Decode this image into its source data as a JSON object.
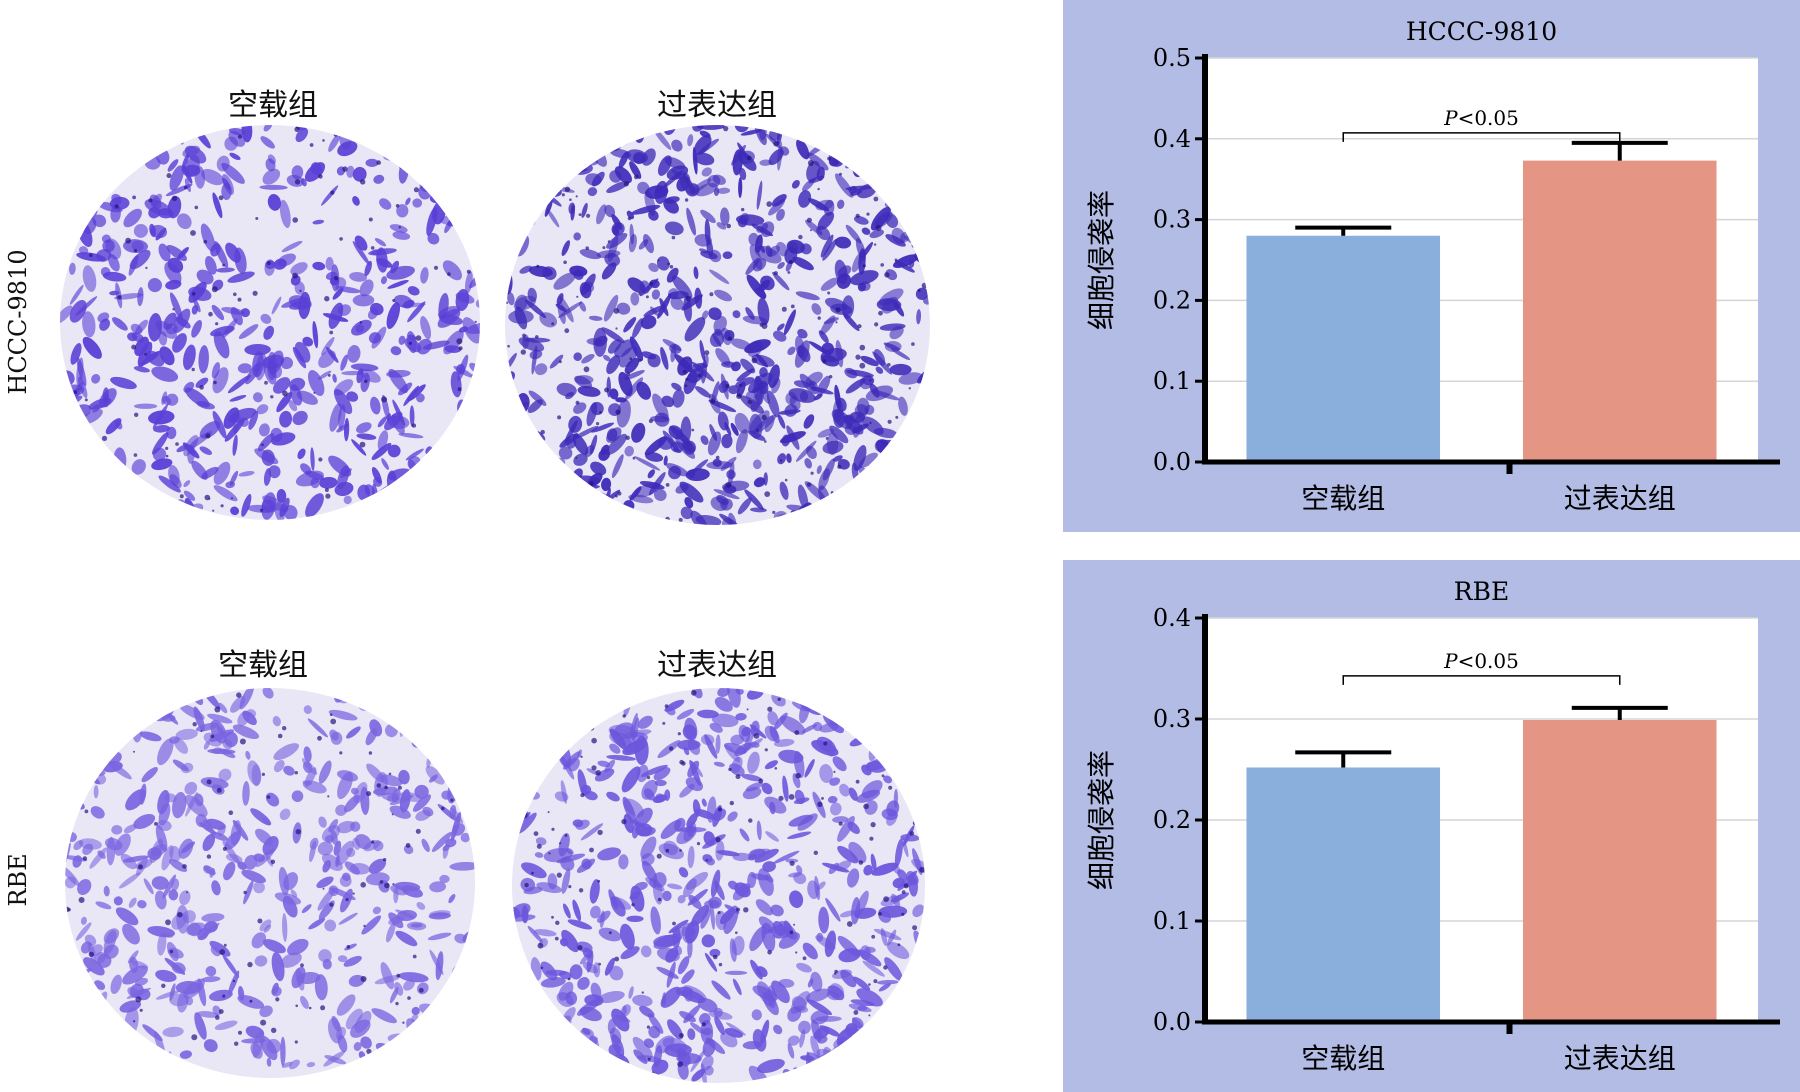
{
  "micrographs": {
    "rows": [
      {
        "label": "HCCC-9810",
        "columns": [
          "空载组",
          "过表达组"
        ],
        "stain_colors": [
          "#5a3fd6",
          "#3d2ab8"
        ]
      },
      {
        "label": "RBE",
        "columns": [
          "空载组",
          "过表达组"
        ],
        "stain_colors": [
          "#7a64e0",
          "#6c56dc"
        ]
      }
    ]
  },
  "chart_data": [
    {
      "type": "bar",
      "title": "HCCC-9810",
      "xlabel": "",
      "ylabel": "细胞侵袭率",
      "categories": [
        "空载组",
        "过表达组"
      ],
      "values": [
        0.28,
        0.373
      ],
      "errors": [
        0.01,
        0.022
      ],
      "colors": [
        "#8aafdc",
        "#e59583"
      ],
      "ylim": [
        0,
        0.5
      ],
      "yticks": [
        "0.0",
        "0.1",
        "0.2",
        "0.3",
        "0.4",
        "0.5"
      ],
      "annotation": {
        "text_italic": "P",
        "text": "<0.05",
        "between": [
          0,
          1
        ]
      },
      "grid": true
    },
    {
      "type": "bar",
      "title": "RBE",
      "xlabel": "",
      "ylabel": "细胞侵袭率",
      "categories": [
        "空载组",
        "过表达组"
      ],
      "values": [
        0.252,
        0.299
      ],
      "errors": [
        0.015,
        0.012
      ],
      "colors": [
        "#8aafdc",
        "#e59583"
      ],
      "ylim": [
        0,
        0.4
      ],
      "yticks": [
        "0.0",
        "0.1",
        "0.2",
        "0.3",
        "0.4"
      ],
      "annotation": {
        "text_italic": "P",
        "text": "<0.05",
        "between": [
          0,
          1
        ]
      },
      "grid": true
    }
  ]
}
